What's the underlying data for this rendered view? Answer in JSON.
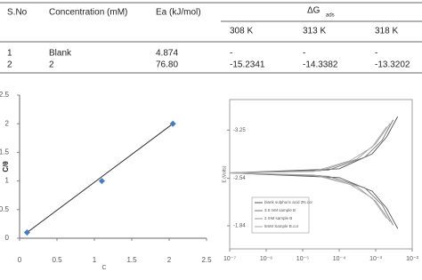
{
  "table": {
    "headers": [
      "S.No",
      "Concentration (mM)",
      "Ea (kJ/mol)"
    ],
    "group_header": {
      "symbol": "ΔG",
      "subscript": "ads"
    },
    "subheaders": [
      "308 K",
      "313 K",
      "318 K"
    ],
    "rows": [
      [
        "1",
        "Blank",
        "4.874",
        "-",
        "-",
        "-"
      ],
      [
        "2",
        "2",
        "76.80",
        "-15.2341",
        "-14.3382",
        "-13.3202"
      ]
    ]
  },
  "chart_data": [
    {
      "type": "scatter",
      "x_label": "C",
      "y_label": "C/θ",
      "x": [
        0.1,
        1.1,
        2.05
      ],
      "values": [
        0.1,
        1.0,
        2.0
      ],
      "color": "#4a7bbf",
      "trendline": true,
      "xlim": [
        0,
        2.5
      ],
      "ylim": [
        0,
        2.5
      ],
      "xticks": [
        0,
        0.5,
        1,
        1.5,
        2,
        2.5
      ],
      "yticks": [
        0,
        0.5,
        1,
        1.5,
        2,
        2.5
      ]
    },
    {
      "type": "line",
      "y_label": "E (Volts)",
      "xlog": true,
      "y_inverted": true,
      "legend": "lower left",
      "xlim": [
        1e-07,
        0.01
      ],
      "ylim": [
        -3.7,
        -1.5
      ],
      "xticks": [
        {
          "value": 1e-07,
          "label": "10⁻⁷"
        },
        {
          "value": 1e-06,
          "label": "10⁻⁶"
        },
        {
          "value": 1e-05,
          "label": "10⁻⁵"
        },
        {
          "value": 0.0001,
          "label": "10⁻⁴"
        },
        {
          "value": 0.001,
          "label": "10⁻³"
        },
        {
          "value": 0.01,
          "label": "10⁻²"
        }
      ],
      "yticks": [
        -3.25,
        -2.54,
        -1.84
      ],
      "series": [
        {
          "name": "blank sulphuric acid 2N.cor",
          "color": "#555555",
          "x": [
            0.004,
            0.002,
            0.0008,
            0.0001,
            1e-07,
            0.0001,
            0.0008,
            0.002,
            0.004
          ],
          "values": [
            -1.8,
            -2.1,
            -2.35,
            -2.55,
            -2.62,
            -2.68,
            -2.9,
            -3.15,
            -3.45
          ]
        },
        {
          "name": "3.0 mM sample B",
          "color": "#777777",
          "x": [
            0.003,
            0.0015,
            0.0005,
            5e-05,
            1e-07,
            5e-05,
            0.0005,
            0.0015,
            0.003
          ],
          "values": [
            -1.85,
            -2.15,
            -2.4,
            -2.57,
            -2.62,
            -2.66,
            -2.85,
            -3.1,
            -3.4
          ]
        },
        {
          "name": "2 mM sample B",
          "color": "#999999",
          "x": [
            0.0025,
            0.001,
            0.0003,
            3e-05,
            1e-07,
            3e-05,
            0.0003,
            0.001,
            0.0025
          ],
          "values": [
            -1.9,
            -2.2,
            -2.42,
            -2.58,
            -2.62,
            -2.65,
            -2.82,
            -3.05,
            -3.35
          ]
        },
        {
          "name": "5mM Sample B.cor",
          "color": "#aaaaaa",
          "x": [
            0.002,
            0.0008,
            0.0002,
            2e-05,
            1e-07,
            2e-05,
            0.0002,
            0.0008,
            0.002
          ],
          "values": [
            -1.95,
            -2.25,
            -2.45,
            -2.59,
            -2.62,
            -2.64,
            -2.8,
            -3.0,
            -3.3
          ]
        }
      ]
    }
  ]
}
